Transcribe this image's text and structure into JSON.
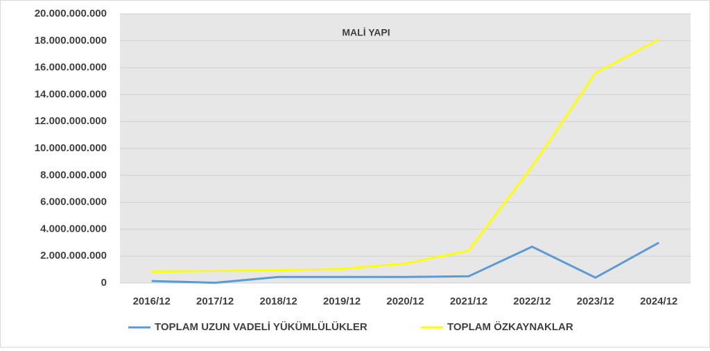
{
  "chart_data": {
    "type": "line",
    "title": "MALİ YAPI",
    "categories": [
      "2016/12",
      "2017/12",
      "2018/12",
      "2019/12",
      "2020/12",
      "2021/12",
      "2022/12",
      "2023/12",
      "2024/12"
    ],
    "series": [
      {
        "name": "TOPLAM UZUN VADELİ YÜKÜMLÜLÜKLER",
        "color": "#5b9bd5",
        "values": [
          150000000,
          20000000,
          450000000,
          450000000,
          450000000,
          500000000,
          2700000000,
          400000000,
          3000000000
        ]
      },
      {
        "name": "TOPLAM ÖZKAYNAKLAR",
        "color": "#ffff00",
        "values": [
          850000000,
          900000000,
          950000000,
          1050000000,
          1450000000,
          2400000000,
          8650000000,
          15600000000,
          18100000000
        ]
      }
    ],
    "ylim": [
      0,
      20000000000
    ],
    "yticks": [
      0,
      {
        "value": 2000000000,
        "label": "2.000.000.000"
      },
      {
        "value": 4000000000,
        "label": "4.000.000.000"
      },
      {
        "value": 6000000000,
        "label": "6.000.000.000"
      },
      {
        "value": 8000000000,
        "label": "8.000.000.000"
      },
      {
        "value": 10000000000,
        "label": "10.000.000.000"
      },
      {
        "value": 12000000000,
        "label": "12.000.000.000"
      },
      {
        "value": 14000000000,
        "label": "14.000.000.000"
      },
      {
        "value": 16000000000,
        "label": "16.000.000.000"
      },
      {
        "value": 18000000000,
        "label": "18.000.000.000"
      },
      {
        "value": 20000000000,
        "label": "20.000.000.000"
      }
    ],
    "grid": true,
    "legend": "bottom",
    "background": "#e7e7e7"
  }
}
